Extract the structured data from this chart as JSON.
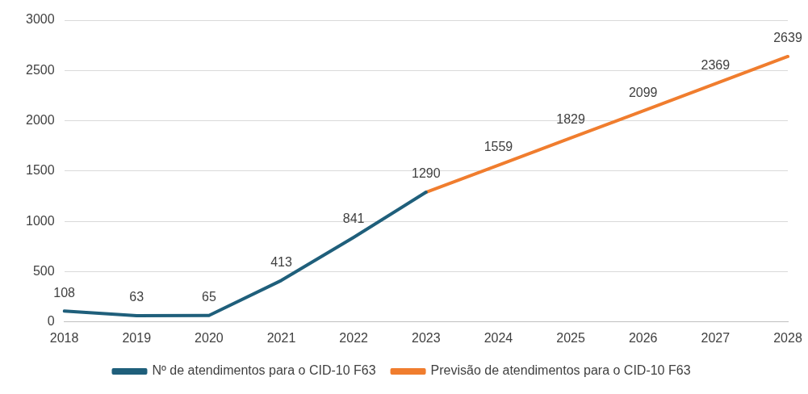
{
  "chart_data": {
    "type": "line",
    "categories": [
      "2018",
      "2019",
      "2020",
      "2021",
      "2022",
      "2023",
      "2024",
      "2025",
      "2026",
      "2027",
      "2028"
    ],
    "series": [
      {
        "name": "Nº de atendimentos para o CID-10 F63",
        "color": "#1f5f7b",
        "values": [
          108,
          63,
          65,
          413,
          841,
          1290,
          null,
          null,
          null,
          null,
          null
        ],
        "value_labels": [
          "108",
          "63",
          "65",
          "413",
          "841",
          "1290",
          null,
          null,
          null,
          null,
          null
        ]
      },
      {
        "name": "Previsão de atendimentos para o CID-10 F63",
        "color": "#f07d2e",
        "values": [
          null,
          null,
          null,
          null,
          null,
          1290,
          1559,
          1829,
          2099,
          2369,
          2639
        ],
        "value_labels": [
          null,
          null,
          null,
          null,
          null,
          null,
          "1559",
          "1829",
          "2099",
          "2369",
          "2639"
        ]
      }
    ],
    "ylim": [
      0,
      3000
    ],
    "yticks": [
      0,
      500,
      1000,
      1500,
      2000,
      2500,
      3000
    ],
    "grid": "y",
    "legend": "bottom",
    "marker": "none",
    "line_style": "solid"
  }
}
